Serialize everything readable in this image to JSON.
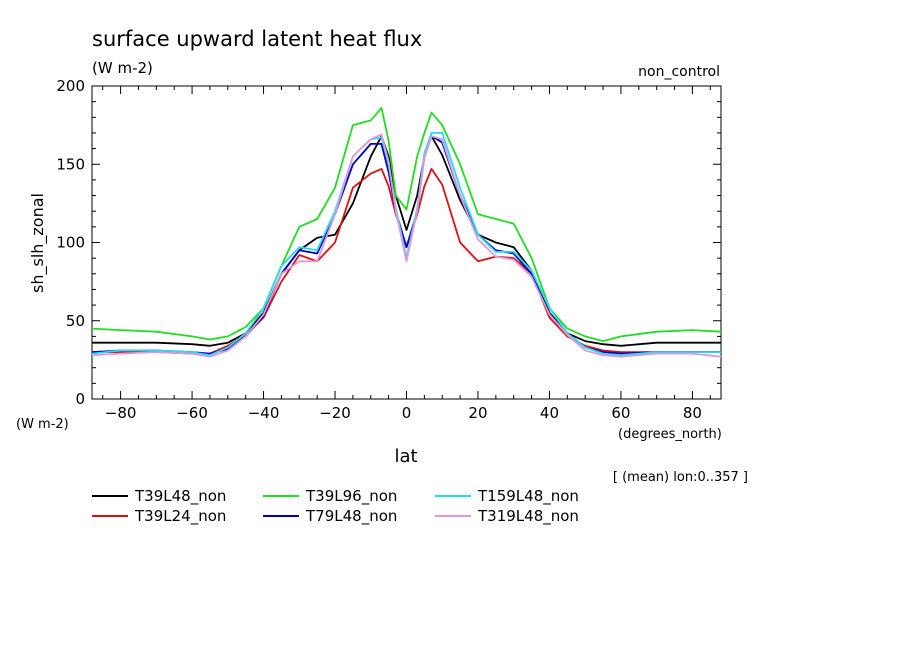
{
  "chart_data": {
    "type": "line",
    "title": "surface upward latent heat flux",
    "units": "(W m-2)",
    "experiment": "non_control",
    "ylabel": "sh_slh_zonal",
    "yunits": "(W m-2)",
    "xlabel": "lat",
    "xunits": "(degrees_north)",
    "note": "[ (mean) lon:0..357 ]",
    "xlim": [
      -88,
      88
    ],
    "ylim": [
      0,
      200
    ],
    "xticks": [
      -80,
      -60,
      -40,
      -20,
      0,
      20,
      40,
      60,
      80
    ],
    "yticks": [
      0,
      50,
      100,
      150,
      200
    ],
    "grid": false,
    "legend_position": "bottom",
    "x": [
      -88,
      -80,
      -70,
      -60,
      -55,
      -50,
      -45,
      -40,
      -35,
      -30,
      -25,
      -20,
      -15,
      -10,
      -7,
      -5,
      -3,
      0,
      3,
      5,
      7,
      10,
      15,
      20,
      25,
      30,
      35,
      40,
      45,
      50,
      55,
      60,
      70,
      80,
      88
    ],
    "series": [
      {
        "name": "T39L48_non",
        "color": "#000000",
        "values": [
          36,
          36,
          36,
          35,
          34,
          36,
          42,
          55,
          80,
          95,
          103,
          105,
          125,
          155,
          168,
          155,
          130,
          108,
          130,
          155,
          168,
          156,
          127,
          105,
          100,
          97,
          82,
          55,
          42,
          37,
          35,
          34,
          36,
          36,
          36
        ]
      },
      {
        "name": "T39L24_non",
        "color": "#e01010",
        "values": [
          30,
          30,
          30,
          29,
          29,
          34,
          41,
          52,
          75,
          92,
          88,
          100,
          135,
          144,
          147,
          136,
          118,
          97,
          118,
          136,
          147,
          137,
          100,
          88,
          91,
          90,
          80,
          52,
          40,
          34,
          31,
          30,
          30,
          30,
          30
        ]
      },
      {
        "name": "T39L96_non",
        "color": "#22dd22",
        "values": [
          45,
          44,
          43,
          40,
          38,
          40,
          46,
          58,
          85,
          110,
          115,
          135,
          175,
          178,
          186,
          165,
          130,
          121,
          155,
          170,
          183,
          175,
          150,
          118,
          115,
          112,
          90,
          58,
          45,
          40,
          37,
          40,
          43,
          44,
          43
        ]
      },
      {
        "name": "T79L48_non",
        "color": "#0000c8",
        "values": [
          30,
          31,
          31,
          30,
          29,
          32,
          40,
          53,
          80,
          95,
          93,
          118,
          150,
          163,
          163,
          145,
          120,
          97,
          120,
          155,
          168,
          164,
          130,
          105,
          95,
          93,
          80,
          54,
          42,
          33,
          30,
          29,
          30,
          30,
          30
        ]
      },
      {
        "name": "T159L48_non",
        "color": "#22ddee",
        "values": [
          29,
          31,
          31,
          30,
          28,
          33,
          42,
          58,
          85,
          97,
          95,
          120,
          155,
          166,
          167,
          150,
          122,
          90,
          122,
          157,
          170,
          170,
          135,
          105,
          94,
          94,
          82,
          58,
          42,
          33,
          29,
          28,
          30,
          30,
          30
        ]
      },
      {
        "name": "T319L48_non",
        "color": "#dd99dd",
        "values": [
          28,
          29,
          30,
          29,
          27,
          31,
          40,
          54,
          80,
          88,
          88,
          118,
          155,
          166,
          169,
          152,
          120,
          88,
          120,
          155,
          168,
          166,
          130,
          102,
          91,
          89,
          78,
          54,
          41,
          31,
          28,
          27,
          29,
          29,
          27
        ]
      }
    ]
  }
}
